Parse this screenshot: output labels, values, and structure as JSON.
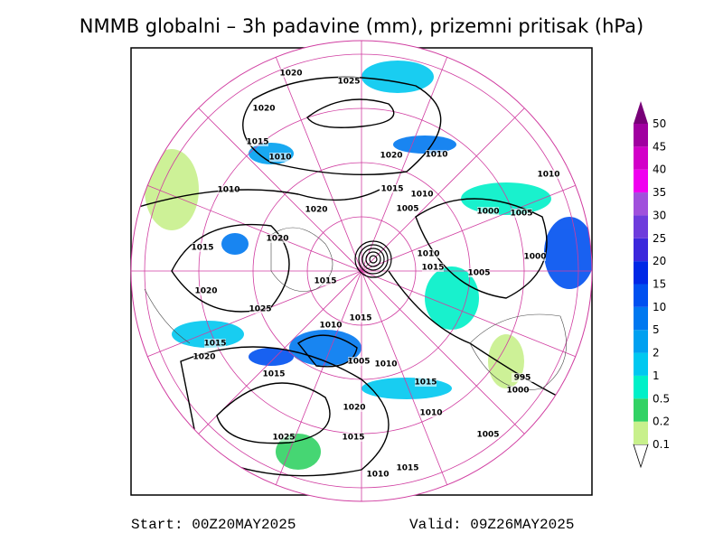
{
  "title": "NMMB globalni – 3h padavine (mm), prizemni pritisak (hPa)",
  "start": "Start: 00Z20MAY2025",
  "valid": "Valid: 09Z26MAY2025",
  "isobar_labels": [
    1020,
    1025,
    1020,
    1015,
    1010,
    1020,
    1010,
    1010,
    1010,
    1015,
    1010,
    1020,
    1005,
    1000,
    1005,
    1015,
    1020,
    1010,
    1000,
    1015,
    1005,
    1015,
    1020,
    1025,
    1015,
    1010,
    1015,
    1020,
    1005,
    1010,
    1015,
    995,
    1000,
    1015,
    1020,
    1010,
    1025,
    1015,
    1005,
    1015,
    1010
  ],
  "legend": {
    "levels": [
      0.1,
      0.2,
      0.5,
      1,
      2,
      5,
      10,
      15,
      20,
      25,
      30,
      35,
      40,
      45,
      50
    ],
    "colors": [
      "#c8f08c",
      "#32d264",
      "#00f0c8",
      "#00c8f0",
      "#00a0f0",
      "#0078f0",
      "#0050f0",
      "#0028e6",
      "#3c28dc",
      "#6e3cdc",
      "#a050dc",
      "#f000f0",
      "#d200c8",
      "#a000a0",
      "#780078"
    ]
  }
}
